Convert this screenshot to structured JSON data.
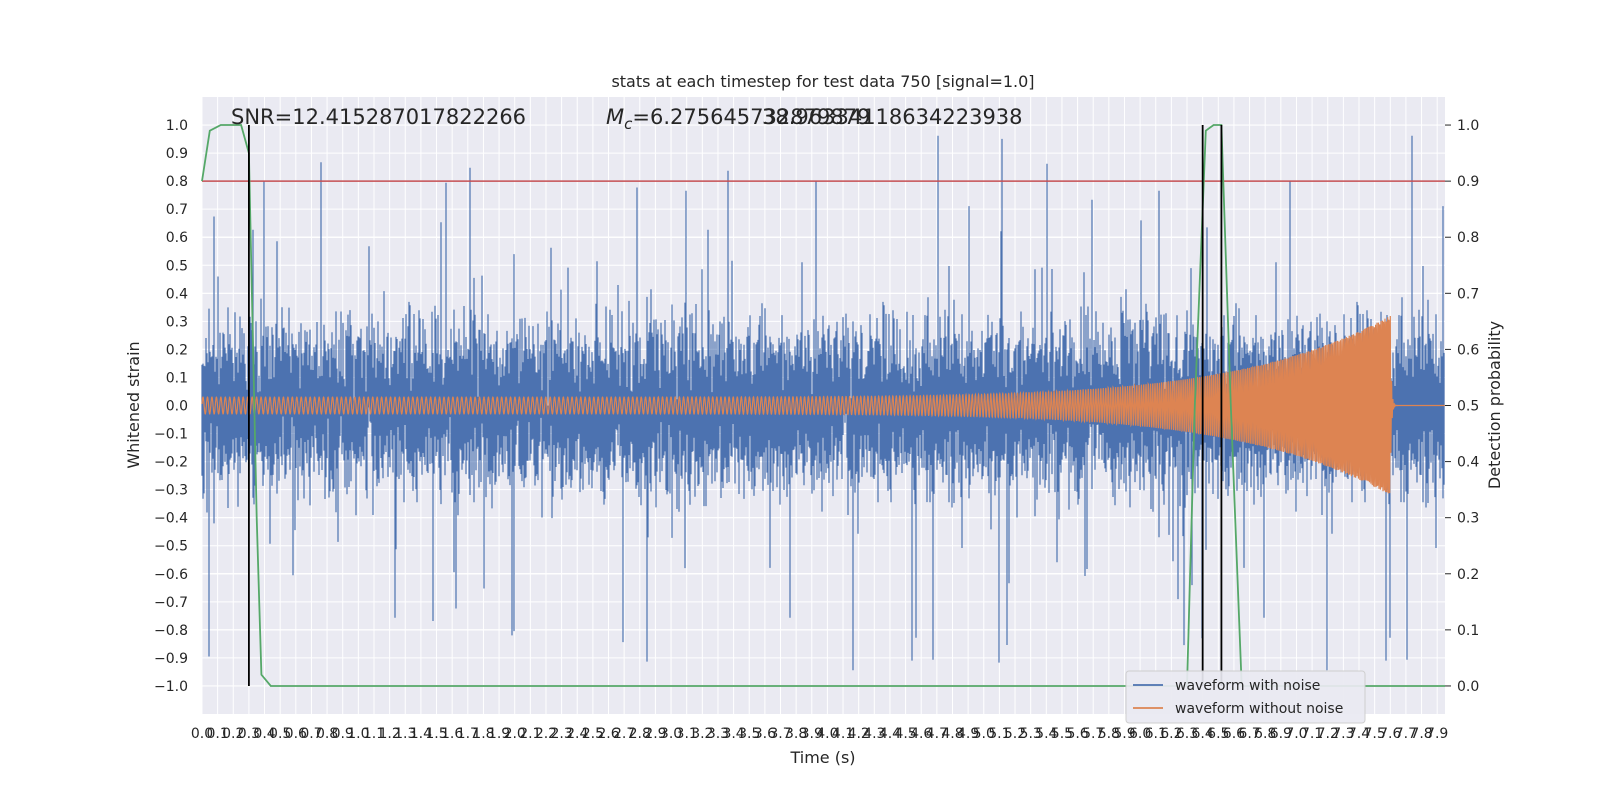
{
  "chart_data": {
    "type": "line",
    "title": "stats at each timestep for test data 750 [signal=1.0]",
    "xlabel": "Time (s)",
    "ylabel": "Whitened strain",
    "y2label": "Detection probability",
    "xlim": [
      0,
      7.95
    ],
    "ylim": [
      -1.1,
      1.1
    ],
    "y2lim": [
      -0.05,
      1.05
    ],
    "grid": true,
    "x_ticks": [
      "0.0",
      "0.1",
      "0.2",
      "0.3",
      "0.4",
      "0.5",
      "0.6",
      "0.7",
      "0.8",
      "0.9",
      "1.0",
      "1.1",
      "1.2",
      "1.3",
      "1.4",
      "1.5",
      "1.6",
      "1.7",
      "1.8",
      "1.9",
      "2.0",
      "2.1",
      "2.2",
      "2.3",
      "2.4",
      "2.5",
      "2.6",
      "2.7",
      "2.8",
      "2.9",
      "3.0",
      "3.1",
      "3.2",
      "3.3",
      "3.4",
      "3.5",
      "3.6",
      "3.7",
      "3.8",
      "3.9",
      "4.0",
      "4.1",
      "4.2",
      "4.3",
      "4.4",
      "4.5",
      "4.6",
      "4.7",
      "4.8",
      "4.9",
      "5.0",
      "5.1",
      "5.2",
      "5.3",
      "5.4",
      "5.5",
      "5.6",
      "5.7",
      "5.8",
      "5.9",
      "6.0",
      "6.1",
      "6.2",
      "6.3",
      "6.4",
      "6.5",
      "6.6",
      "6.7",
      "6.8",
      "6.9",
      "7.0",
      "7.1",
      "7.2",
      "7.3",
      "7.4",
      "7.5",
      "7.6",
      "7.7",
      "7.8",
      "7.9"
    ],
    "y_ticks": [
      "1.0",
      "0.9",
      "0.8",
      "0.7",
      "0.6",
      "0.5",
      "0.4",
      "0.3",
      "0.2",
      "0.1",
      "0.0",
      "−0.1",
      "−0.2",
      "−0.3",
      "−0.4",
      "−0.5",
      "−0.6",
      "−0.7",
      "−0.8",
      "−0.9",
      "−1.0"
    ],
    "y_tick_values": [
      1.0,
      0.9,
      0.8,
      0.7,
      0.6,
      0.5,
      0.4,
      0.3,
      0.2,
      0.1,
      0.0,
      -0.1,
      -0.2,
      -0.3,
      -0.4,
      -0.5,
      -0.6,
      -0.7,
      -0.8,
      -0.9,
      -1.0
    ],
    "y2_ticks": [
      "1.0",
      "0.9",
      "0.8",
      "0.7",
      "0.6",
      "0.5",
      "0.4",
      "0.3",
      "0.2",
      "0.1",
      "0.0"
    ],
    "y2_tick_values": [
      1.0,
      0.9,
      0.8,
      0.7,
      0.6,
      0.5,
      0.4,
      0.3,
      0.2,
      0.1,
      0.0
    ],
    "annotations": {
      "snr": "SNR=12.415287017822266",
      "mc_symbol": "M",
      "mc_sub": "c",
      "mc_value": "=6.275645732879879",
      "overlap": "38.96334118634223938"
    },
    "threshold": 0.9,
    "vlines": [
      0.3,
      6.4,
      6.52
    ],
    "legend": {
      "placement": "lower-right",
      "entries": [
        "waveform with noise",
        "waveform without noise"
      ]
    },
    "series": [
      {
        "name": "waveform with noise",
        "color": "#4c72b0",
        "noise_envelope": {
          "typical_max": 0.45,
          "peak_max": 0.97,
          "min": -0.96,
          "end_time": 7.95
        }
      },
      {
        "name": "waveform without noise",
        "color": "#dd8452",
        "chirp": {
          "start_amplitude": 0.03,
          "peak_amplitude": 0.32,
          "peak_time": 7.6,
          "start_freq": 35,
          "peak_freq": 120
        }
      },
      {
        "color": "#55a868",
        "axis": "right",
        "x": [
          0.0,
          0.05,
          0.12,
          0.25,
          0.3,
          0.35,
          0.38,
          0.44,
          0.5,
          6.3,
          6.35,
          6.42,
          6.47,
          6.52,
          6.58,
          6.65,
          7.95
        ],
        "y": [
          0.9,
          0.99,
          1.0,
          1.0,
          0.95,
          0.3,
          0.02,
          0.0,
          0.0,
          0.0,
          0.5,
          0.99,
          1.0,
          1.0,
          0.5,
          0.0,
          0.0
        ]
      }
    ]
  }
}
